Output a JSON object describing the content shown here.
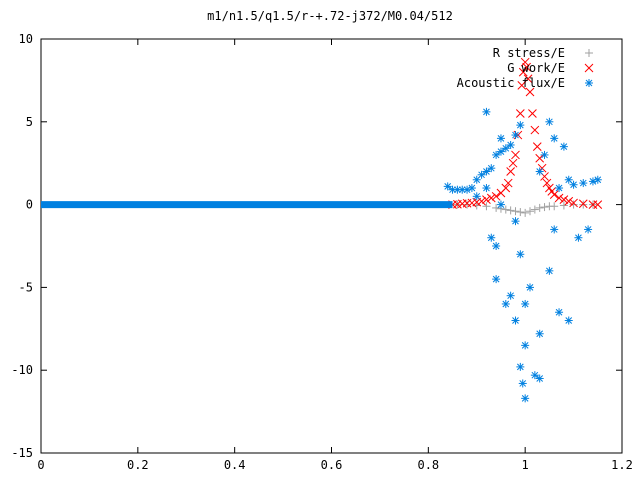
{
  "chart_data": {
    "type": "scatter",
    "title": "m1/n1.5/q1.5/r-+.72-j372/M0.04/512",
    "xlabel": "",
    "ylabel": "",
    "xlim": [
      0,
      1.2
    ],
    "ylim": [
      -15,
      10
    ],
    "x_ticks": [
      0,
      0.2,
      0.4,
      0.6,
      0.8,
      1,
      1.2
    ],
    "y_ticks": [
      -15,
      -10,
      -5,
      0,
      5,
      10
    ],
    "x_tick_labels": [
      "0",
      "0.2",
      "0.4",
      "0.6",
      "0.8",
      "1",
      "1.2"
    ],
    "y_tick_labels": [
      "-15",
      "-10",
      "-5",
      "0",
      "5",
      "10"
    ],
    "grid": false,
    "legend_position": "top-right",
    "series": [
      {
        "name": "R stress/E",
        "color": "#a0a0a0",
        "marker": "plus",
        "points": [
          [
            0.86,
            0.0
          ],
          [
            0.88,
            0.0
          ],
          [
            0.9,
            -0.05
          ],
          [
            0.92,
            -0.1
          ],
          [
            0.94,
            -0.2
          ],
          [
            0.95,
            -0.25
          ],
          [
            0.96,
            -0.3
          ],
          [
            0.97,
            -0.35
          ],
          [
            0.98,
            -0.4
          ],
          [
            0.99,
            -0.45
          ],
          [
            1.0,
            -0.5
          ],
          [
            1.01,
            -0.4
          ],
          [
            1.02,
            -0.3
          ],
          [
            1.03,
            -0.2
          ],
          [
            1.04,
            -0.15
          ],
          [
            1.05,
            -0.1
          ],
          [
            1.06,
            -0.1
          ],
          [
            1.08,
            -0.05
          ],
          [
            1.1,
            0.0
          ],
          [
            1.12,
            0.0
          ],
          [
            1.14,
            0.0
          ]
        ]
      },
      {
        "name": "G work/E",
        "color": "#ff0000",
        "marker": "cross",
        "points": [
          [
            0.85,
            0.0
          ],
          [
            0.86,
            0.02
          ],
          [
            0.87,
            0.05
          ],
          [
            0.88,
            0.08
          ],
          [
            0.89,
            0.1
          ],
          [
            0.9,
            0.15
          ],
          [
            0.91,
            0.2
          ],
          [
            0.92,
            0.3
          ],
          [
            0.93,
            0.4
          ],
          [
            0.94,
            0.5
          ],
          [
            0.95,
            0.7
          ],
          [
            0.96,
            1.0
          ],
          [
            0.965,
            1.3
          ],
          [
            0.97,
            2.0
          ],
          [
            0.975,
            2.5
          ],
          [
            0.98,
            3.0
          ],
          [
            0.985,
            4.2
          ],
          [
            0.99,
            5.5
          ],
          [
            0.993,
            7.2
          ],
          [
            0.996,
            8.0
          ],
          [
            1.0,
            8.6
          ],
          [
            1.003,
            8.3
          ],
          [
            1.006,
            7.6
          ],
          [
            1.01,
            6.8
          ],
          [
            1.015,
            5.5
          ],
          [
            1.02,
            4.5
          ],
          [
            1.025,
            3.5
          ],
          [
            1.03,
            2.8
          ],
          [
            1.035,
            2.2
          ],
          [
            1.04,
            1.7
          ],
          [
            1.045,
            1.3
          ],
          [
            1.05,
            1.0
          ],
          [
            1.055,
            0.8
          ],
          [
            1.06,
            0.6
          ],
          [
            1.07,
            0.4
          ],
          [
            1.08,
            0.3
          ],
          [
            1.09,
            0.2
          ],
          [
            1.1,
            0.1
          ],
          [
            1.12,
            0.05
          ],
          [
            1.14,
            0.0
          ],
          [
            1.15,
            0.0
          ]
        ]
      },
      {
        "name": "Acoustic flux/E",
        "color": "#0080e0",
        "marker": "star",
        "flat_segment": {
          "x_start": 0,
          "x_end": 0.85,
          "y": 0
        },
        "points": [
          [
            0.84,
            1.1
          ],
          [
            0.85,
            0.9
          ],
          [
            0.86,
            0.9
          ],
          [
            0.87,
            0.9
          ],
          [
            0.88,
            0.9
          ],
          [
            0.89,
            1.0
          ],
          [
            0.9,
            1.5
          ],
          [
            0.91,
            1.8
          ],
          [
            0.92,
            2.0
          ],
          [
            0.93,
            2.2
          ],
          [
            0.94,
            3.0
          ],
          [
            0.95,
            3.2
          ],
          [
            0.96,
            3.4
          ],
          [
            0.97,
            3.6
          ],
          [
            0.98,
            4.2
          ],
          [
            0.99,
            4.8
          ],
          [
            0.9,
            0.5
          ],
          [
            0.92,
            1.0
          ],
          [
            0.95,
            0.0
          ],
          [
            0.98,
            -1.0
          ],
          [
            0.99,
            -3.0
          ],
          [
            1.0,
            -6.0
          ],
          [
            1.01,
            -5.0
          ],
          [
            0.96,
            -6.0
          ],
          [
            0.94,
            -4.5
          ],
          [
            0.92,
            5.6
          ],
          [
            1.03,
            2.0
          ],
          [
            1.04,
            3.0
          ],
          [
            1.06,
            4.0
          ],
          [
            1.08,
            3.5
          ],
          [
            1.1,
            1.2
          ],
          [
            1.12,
            1.3
          ],
          [
            1.14,
            1.4
          ],
          [
            1.15,
            1.5
          ],
          [
            1.0,
            -11.7
          ],
          [
            0.995,
            -10.8
          ],
          [
            0.99,
            -9.8
          ],
          [
            1.02,
            -10.3
          ],
          [
            1.03,
            -10.5
          ],
          [
            0.98,
            -7.0
          ],
          [
            1.0,
            -8.5
          ],
          [
            0.97,
            -5.5
          ],
          [
            1.05,
            -4.0
          ],
          [
            1.07,
            -6.5
          ],
          [
            1.09,
            -7.0
          ],
          [
            1.11,
            -2.0
          ],
          [
            1.13,
            -1.5
          ],
          [
            1.06,
            -1.5
          ],
          [
            1.05,
            5.0
          ],
          [
            0.93,
            -2.0
          ],
          [
            1.03,
            -7.8
          ],
          [
            0.94,
            -2.5
          ],
          [
            0.95,
            4.0
          ],
          [
            1.07,
            1.0
          ],
          [
            1.09,
            1.5
          ]
        ]
      }
    ]
  }
}
